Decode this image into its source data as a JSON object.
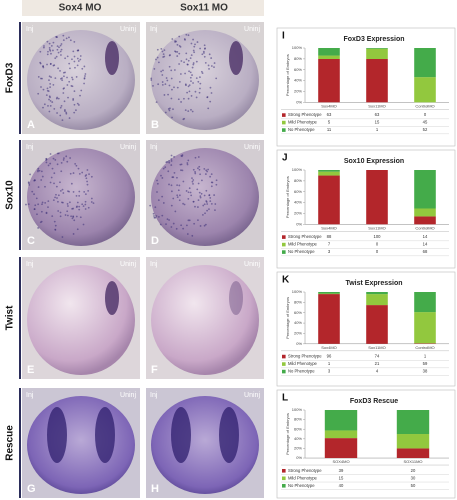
{
  "figure": {
    "columns": [
      "Sox4 MO",
      "Sox11 MO"
    ],
    "rows": [
      "FoxD3",
      "Sox10",
      "Twist",
      "Rescue"
    ],
    "panels": [
      {
        "letter": "A",
        "left": "Inj",
        "right": "Uninj"
      },
      {
        "letter": "B",
        "left": "Inj",
        "right": "Uninj"
      },
      {
        "letter": "C",
        "left": "Inj",
        "right": "Uninj"
      },
      {
        "letter": "D",
        "left": "Inj",
        "right": "Uninj"
      },
      {
        "letter": "E",
        "left": "Inj",
        "right": "Uninj"
      },
      {
        "letter": "F",
        "left": "Inj",
        "right": "Uninj"
      },
      {
        "letter": "G",
        "left": "Inj",
        "right": "Uninj"
      },
      {
        "letter": "H",
        "left": "Inj",
        "right": "Uninj"
      }
    ]
  },
  "chart_data": [
    {
      "type": "bar",
      "panel": "I",
      "title": "FoxD3 Expression",
      "ylabel": "Percentage of Embryos",
      "categories": [
        "Sox4MO",
        "Sox11MO",
        "ControlMO"
      ],
      "series": [
        {
          "name": "Strong Phenotype",
          "color": "#b3262b",
          "values": [
            63,
            63,
            0
          ]
        },
        {
          "name": "Mild Phenotype",
          "color": "#92c83e",
          "values": [
            5,
            15,
            45
          ]
        },
        {
          "name": "No Phenotype",
          "color": "#44ab4a",
          "values": [
            11,
            1,
            52
          ]
        }
      ],
      "ylim": [
        0,
        100
      ],
      "yticks": [
        {
          "value": 0,
          "label": "0%"
        },
        {
          "value": 20,
          "label": "20%"
        },
        {
          "value": 40,
          "label": "40%"
        },
        {
          "value": 60,
          "label": "60%"
        },
        {
          "value": 80,
          "label": "80%"
        },
        {
          "value": 100,
          "label": "100%"
        }
      ]
    },
    {
      "type": "bar",
      "panel": "J",
      "title": "Sox10 Expression",
      "ylabel": "Percentage of Embryos",
      "categories": [
        "Sox4MO",
        "Sox11MO",
        "ControlMO"
      ],
      "series": [
        {
          "name": "Strong Phenotype",
          "color": "#b3262b",
          "values": [
            88,
            100,
            14
          ]
        },
        {
          "name": "Mild Phenotype",
          "color": "#92c83e",
          "values": [
            7,
            0,
            14
          ]
        },
        {
          "name": "No Phenotype",
          "color": "#44ab4a",
          "values": [
            3,
            0,
            68
          ]
        }
      ],
      "ylim": [
        0,
        100
      ],
      "yticks": [
        {
          "value": 0,
          "label": "0%"
        },
        {
          "value": 20,
          "label": "20%"
        },
        {
          "value": 40,
          "label": "40%"
        },
        {
          "value": 60,
          "label": "60%"
        },
        {
          "value": 80,
          "label": "80%"
        },
        {
          "value": 100,
          "label": "100%"
        }
      ]
    },
    {
      "type": "bar",
      "panel": "K",
      "title": "Twist Expression",
      "ylabel": "Percentage of Embryos",
      "categories": [
        "Sox4MO",
        "Sox11MO",
        "ControlMO"
      ],
      "series": [
        {
          "name": "Strong Phenotype",
          "color": "#b3262b",
          "values": [
            96,
            74,
            1
          ]
        },
        {
          "name": "Mild Phenotype",
          "color": "#92c83e",
          "values": [
            1,
            21,
            59
          ]
        },
        {
          "name": "No Phenotype",
          "color": "#44ab4a",
          "values": [
            3,
            4,
            38
          ]
        }
      ],
      "ylim": [
        0,
        100
      ],
      "yticks": [
        {
          "value": 0,
          "label": "0%"
        },
        {
          "value": 20,
          "label": "20%"
        },
        {
          "value": 40,
          "label": "40%"
        },
        {
          "value": 60,
          "label": "60%"
        },
        {
          "value": 80,
          "label": "80%"
        },
        {
          "value": 100,
          "label": "100%"
        }
      ]
    },
    {
      "type": "bar",
      "panel": "L",
      "title": "FoxD3 Rescue",
      "ylabel": "Percentage of Embryos",
      "categories": [
        "SOX4MO",
        "SOX11MO"
      ],
      "series": [
        {
          "name": "Strong Phenotype",
          "color": "#b3262b",
          "values": [
            39,
            20
          ]
        },
        {
          "name": "Mild Phenotype",
          "color": "#92c83e",
          "values": [
            15,
            30
          ]
        },
        {
          "name": "No Phenotype",
          "color": "#44ab4a",
          "values": [
            40,
            50
          ]
        }
      ],
      "ylim": [
        0,
        100
      ],
      "yticks": [
        {
          "value": 0,
          "label": "0%"
        },
        {
          "value": 20,
          "label": "20%"
        },
        {
          "value": 40,
          "label": "40%"
        },
        {
          "value": 60,
          "label": "60%"
        },
        {
          "value": 80,
          "label": "80%"
        },
        {
          "value": 100,
          "label": "100%"
        }
      ]
    }
  ]
}
